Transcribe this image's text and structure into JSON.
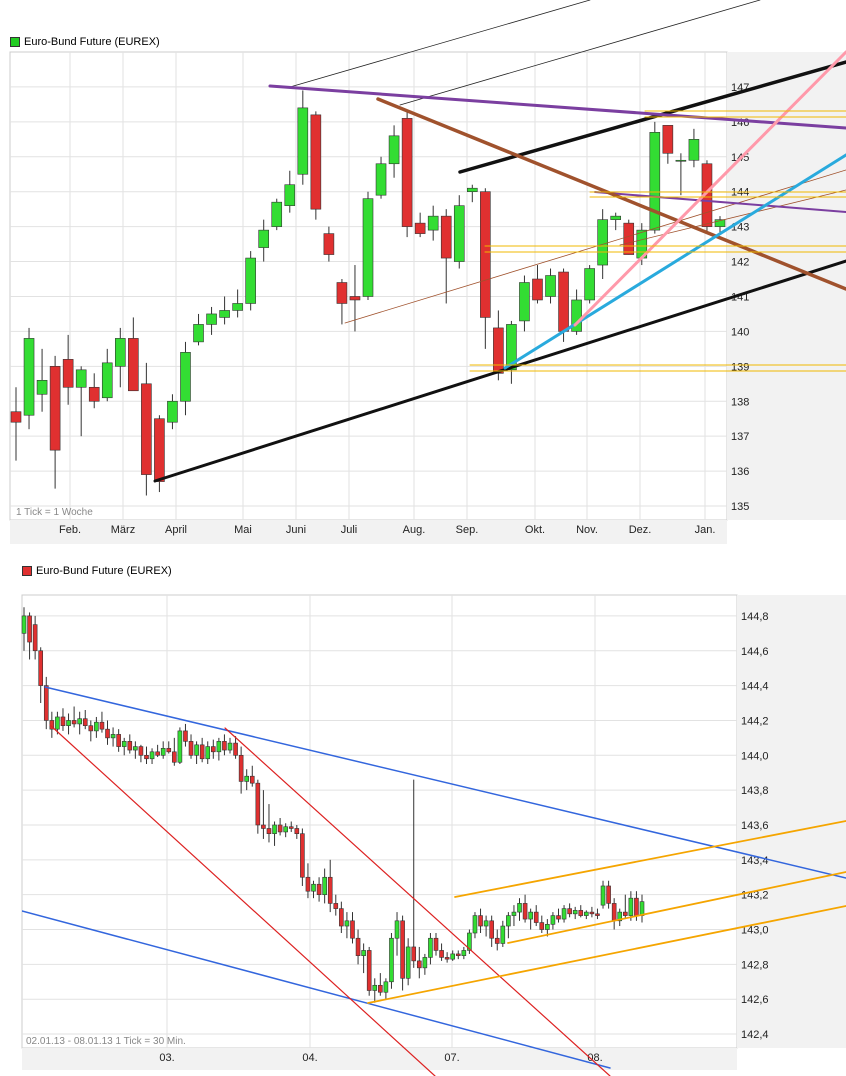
{
  "chart_data": [
    {
      "type": "candlestick",
      "title": "Euro-Bund Future (EUREX)",
      "legend_color": "#22cc22",
      "footnote": "1 Tick = 1 Woche",
      "x_tick_labels": [
        "Feb.",
        "März",
        "April",
        "Mai",
        "Juni",
        "Juli",
        "Aug.",
        "Sep.",
        "Okt.",
        "Nov.",
        "Dez.",
        "Jan."
      ],
      "y_tick_labels": [
        "135",
        "136",
        "137",
        "138",
        "139",
        "140",
        "141",
        "142",
        "143",
        "144",
        "145",
        "146",
        "147"
      ],
      "ylim": [
        134.6,
        148.0
      ],
      "up_color": "#33dd33",
      "down_color": "#e03030",
      "candles": [
        {
          "o": 137.7,
          "h": 138.4,
          "l": 136.3,
          "c": 137.4
        },
        {
          "o": 137.6,
          "h": 140.1,
          "l": 137.2,
          "c": 139.8
        },
        {
          "o": 138.2,
          "h": 139.5,
          "l": 137.7,
          "c": 138.6
        },
        {
          "o": 139.0,
          "h": 139.3,
          "l": 135.5,
          "c": 136.6
        },
        {
          "o": 139.2,
          "h": 139.9,
          "l": 137.9,
          "c": 138.4
        },
        {
          "o": 138.4,
          "h": 139.0,
          "l": 137.0,
          "c": 138.9
        },
        {
          "o": 138.4,
          "h": 138.8,
          "l": 137.8,
          "c": 138.0
        },
        {
          "o": 138.1,
          "h": 139.5,
          "l": 138.0,
          "c": 139.1
        },
        {
          "o": 139.0,
          "h": 140.1,
          "l": 138.4,
          "c": 139.8
        },
        {
          "o": 139.8,
          "h": 140.4,
          "l": 138.3,
          "c": 138.3
        },
        {
          "o": 138.5,
          "h": 139.1,
          "l": 135.3,
          "c": 135.9
        },
        {
          "o": 137.5,
          "h": 137.6,
          "l": 135.4,
          "c": 135.7
        },
        {
          "o": 137.4,
          "h": 138.2,
          "l": 137.2,
          "c": 138.0
        },
        {
          "o": 138.0,
          "h": 139.7,
          "l": 137.6,
          "c": 139.4
        },
        {
          "o": 139.7,
          "h": 140.5,
          "l": 139.6,
          "c": 140.2
        },
        {
          "o": 140.2,
          "h": 140.7,
          "l": 139.9,
          "c": 140.5
        },
        {
          "o": 140.4,
          "h": 141.0,
          "l": 140.2,
          "c": 140.6
        },
        {
          "o": 140.6,
          "h": 141.2,
          "l": 140.4,
          "c": 140.8
        },
        {
          "o": 140.8,
          "h": 142.3,
          "l": 140.6,
          "c": 142.1
        },
        {
          "o": 142.4,
          "h": 143.2,
          "l": 142.0,
          "c": 142.9
        },
        {
          "o": 143.0,
          "h": 143.8,
          "l": 142.9,
          "c": 143.7
        },
        {
          "o": 143.6,
          "h": 144.6,
          "l": 143.4,
          "c": 144.2
        },
        {
          "o": 144.5,
          "h": 146.9,
          "l": 144.2,
          "c": 146.4
        },
        {
          "o": 146.2,
          "h": 146.3,
          "l": 143.2,
          "c": 143.5
        },
        {
          "o": 142.8,
          "h": 143.0,
          "l": 142.0,
          "c": 142.2
        },
        {
          "o": 141.4,
          "h": 141.5,
          "l": 140.2,
          "c": 140.8
        },
        {
          "o": 141.0,
          "h": 141.9,
          "l": 140.0,
          "c": 140.9
        },
        {
          "o": 141.0,
          "h": 144.0,
          "l": 140.9,
          "c": 143.8
        },
        {
          "o": 143.9,
          "h": 145.0,
          "l": 143.8,
          "c": 144.8
        },
        {
          "o": 144.8,
          "h": 145.9,
          "l": 144.4,
          "c": 145.6
        },
        {
          "o": 146.1,
          "h": 146.3,
          "l": 142.7,
          "c": 143.0
        },
        {
          "o": 143.1,
          "h": 143.4,
          "l": 142.7,
          "c": 142.8
        },
        {
          "o": 142.9,
          "h": 143.6,
          "l": 142.6,
          "c": 143.3
        },
        {
          "o": 143.3,
          "h": 143.5,
          "l": 140.8,
          "c": 142.1
        },
        {
          "o": 142.0,
          "h": 143.9,
          "l": 141.8,
          "c": 143.6
        },
        {
          "o": 144.0,
          "h": 144.2,
          "l": 143.7,
          "c": 144.1
        },
        {
          "o": 144.0,
          "h": 144.1,
          "l": 139.5,
          "c": 140.4
        },
        {
          "o": 140.1,
          "h": 140.6,
          "l": 138.6,
          "c": 138.8
        },
        {
          "o": 138.9,
          "h": 140.3,
          "l": 138.5,
          "c": 140.2
        },
        {
          "o": 140.3,
          "h": 141.6,
          "l": 140.0,
          "c": 141.4
        },
        {
          "o": 141.5,
          "h": 141.9,
          "l": 140.8,
          "c": 140.9
        },
        {
          "o": 141.0,
          "h": 141.8,
          "l": 140.8,
          "c": 141.6
        },
        {
          "o": 141.7,
          "h": 141.8,
          "l": 139.7,
          "c": 140.0
        },
        {
          "o": 140.0,
          "h": 141.2,
          "l": 139.9,
          "c": 140.9
        },
        {
          "o": 140.9,
          "h": 141.9,
          "l": 140.8,
          "c": 141.8
        },
        {
          "o": 141.9,
          "h": 143.5,
          "l": 141.5,
          "c": 143.2
        },
        {
          "o": 143.2,
          "h": 143.4,
          "l": 142.9,
          "c": 143.3
        },
        {
          "o": 143.1,
          "h": 143.2,
          "l": 142.2,
          "c": 142.2
        },
        {
          "o": 142.1,
          "h": 143.1,
          "l": 141.9,
          "c": 142.9
        },
        {
          "o": 142.9,
          "h": 146.0,
          "l": 142.8,
          "c": 145.7
        },
        {
          "o": 145.9,
          "h": 145.9,
          "l": 144.8,
          "c": 145.1
        },
        {
          "o": 144.9,
          "h": 145.1,
          "l": 143.9,
          "c": 144.9
        },
        {
          "o": 144.9,
          "h": 145.8,
          "l": 144.7,
          "c": 145.5
        },
        {
          "o": 144.8,
          "h": 144.9,
          "l": 142.8,
          "c": 143.0
        },
        {
          "o": 143.0,
          "h": 143.3,
          "l": 142.8,
          "c": 143.2
        }
      ]
    },
    {
      "type": "candlestick",
      "title": "Euro-Bund Future (EUREX)",
      "legend_color": "#e03030",
      "footnote": "02.01.13 - 08.01.13   1 Tick = 30 Min.",
      "x_tick_labels": [
        "03.",
        "04.",
        "07.",
        "08."
      ],
      "y_tick_labels": [
        "142,4",
        "142,6",
        "142,8",
        "143,0",
        "143,2",
        "143,4",
        "143,6",
        "143,8",
        "144,0",
        "144,2",
        "144,4",
        "144,6",
        "144,8"
      ],
      "ylim": [
        142.32,
        144.92
      ],
      "up_color": "#33dd33",
      "down_color": "#e03030",
      "candles": [
        {
          "o": 144.7,
          "h": 144.85,
          "l": 144.6,
          "c": 144.8
        },
        {
          "o": 144.8,
          "h": 144.82,
          "l": 144.55,
          "c": 144.65
        },
        {
          "o": 144.75,
          "h": 144.8,
          "l": 144.55,
          "c": 144.6
        },
        {
          "o": 144.6,
          "h": 144.62,
          "l": 144.3,
          "c": 144.4
        },
        {
          "o": 144.4,
          "h": 144.45,
          "l": 144.15,
          "c": 144.2
        },
        {
          "o": 144.2,
          "h": 144.25,
          "l": 144.1,
          "c": 144.15
        },
        {
          "o": 144.15,
          "h": 144.25,
          "l": 144.12,
          "c": 144.22
        },
        {
          "o": 144.22,
          "h": 144.27,
          "l": 144.14,
          "c": 144.17
        },
        {
          "o": 144.17,
          "h": 144.24,
          "l": 144.12,
          "c": 144.2
        },
        {
          "o": 144.2,
          "h": 144.28,
          "l": 144.16,
          "c": 144.18
        },
        {
          "o": 144.18,
          "h": 144.25,
          "l": 144.12,
          "c": 144.21
        },
        {
          "o": 144.21,
          "h": 144.26,
          "l": 144.15,
          "c": 144.17
        },
        {
          "o": 144.17,
          "h": 144.2,
          "l": 144.08,
          "c": 144.14
        },
        {
          "o": 144.14,
          "h": 144.22,
          "l": 144.1,
          "c": 144.19
        },
        {
          "o": 144.19,
          "h": 144.25,
          "l": 144.13,
          "c": 144.15
        },
        {
          "o": 144.15,
          "h": 144.2,
          "l": 144.06,
          "c": 144.1
        },
        {
          "o": 144.1,
          "h": 144.16,
          "l": 144.05,
          "c": 144.12
        },
        {
          "o": 144.12,
          "h": 144.15,
          "l": 144.02,
          "c": 144.05
        },
        {
          "o": 144.05,
          "h": 144.1,
          "l": 144.0,
          "c": 144.08
        },
        {
          "o": 144.08,
          "h": 144.12,
          "l": 144.01,
          "c": 144.03
        },
        {
          "o": 144.03,
          "h": 144.08,
          "l": 143.98,
          "c": 144.05
        },
        {
          "o": 144.05,
          "h": 144.06,
          "l": 143.96,
          "c": 144.0
        },
        {
          "o": 144.0,
          "h": 144.05,
          "l": 143.95,
          "c": 143.98
        },
        {
          "o": 143.98,
          "h": 144.04,
          "l": 143.95,
          "c": 144.02
        },
        {
          "o": 144.02,
          "h": 144.06,
          "l": 143.99,
          "c": 144.0
        },
        {
          "o": 144.0,
          "h": 144.08,
          "l": 143.98,
          "c": 144.04
        },
        {
          "o": 144.04,
          "h": 144.08,
          "l": 144.01,
          "c": 144.02
        },
        {
          "o": 144.02,
          "h": 144.1,
          "l": 143.94,
          "c": 143.96
        },
        {
          "o": 143.96,
          "h": 144.16,
          "l": 143.95,
          "c": 144.14
        },
        {
          "o": 144.14,
          "h": 144.18,
          "l": 144.05,
          "c": 144.08
        },
        {
          "o": 144.08,
          "h": 144.12,
          "l": 143.98,
          "c": 144.0
        },
        {
          "o": 144.0,
          "h": 144.08,
          "l": 143.95,
          "c": 144.06
        },
        {
          "o": 144.06,
          "h": 144.1,
          "l": 143.96,
          "c": 143.98
        },
        {
          "o": 143.98,
          "h": 144.08,
          "l": 143.95,
          "c": 144.05
        },
        {
          "o": 144.05,
          "h": 144.09,
          "l": 143.98,
          "c": 144.02
        },
        {
          "o": 144.02,
          "h": 144.1,
          "l": 143.97,
          "c": 144.08
        },
        {
          "o": 144.08,
          "h": 144.12,
          "l": 144.0,
          "c": 144.03
        },
        {
          "o": 144.03,
          "h": 144.1,
          "l": 144.01,
          "c": 144.07
        },
        {
          "o": 144.07,
          "h": 144.11,
          "l": 143.98,
          "c": 144.0
        },
        {
          "o": 144.0,
          "h": 144.05,
          "l": 143.78,
          "c": 143.85
        },
        {
          "o": 143.85,
          "h": 143.92,
          "l": 143.8,
          "c": 143.88
        },
        {
          "o": 143.88,
          "h": 143.94,
          "l": 143.82,
          "c": 143.84
        },
        {
          "o": 143.84,
          "h": 143.86,
          "l": 143.55,
          "c": 143.6
        },
        {
          "o": 143.6,
          "h": 143.8,
          "l": 143.52,
          "c": 143.58
        },
        {
          "o": 143.58,
          "h": 143.72,
          "l": 143.5,
          "c": 143.55
        },
        {
          "o": 143.55,
          "h": 143.62,
          "l": 143.48,
          "c": 143.6
        },
        {
          "o": 143.6,
          "h": 143.64,
          "l": 143.54,
          "c": 143.56
        },
        {
          "o": 143.56,
          "h": 143.61,
          "l": 143.53,
          "c": 143.59
        },
        {
          "o": 143.59,
          "h": 143.62,
          "l": 143.56,
          "c": 143.58
        },
        {
          "o": 143.58,
          "h": 143.6,
          "l": 143.52,
          "c": 143.55
        },
        {
          "o": 143.55,
          "h": 143.58,
          "l": 143.25,
          "c": 143.3
        },
        {
          "o": 143.3,
          "h": 143.38,
          "l": 143.18,
          "c": 143.22
        },
        {
          "o": 143.22,
          "h": 143.28,
          "l": 143.18,
          "c": 143.26
        },
        {
          "o": 143.26,
          "h": 143.3,
          "l": 143.16,
          "c": 143.2
        },
        {
          "o": 143.2,
          "h": 143.35,
          "l": 143.15,
          "c": 143.3
        },
        {
          "o": 143.3,
          "h": 143.4,
          "l": 143.1,
          "c": 143.15
        },
        {
          "o": 143.15,
          "h": 143.2,
          "l": 143.08,
          "c": 143.12
        },
        {
          "o": 143.12,
          "h": 143.16,
          "l": 142.98,
          "c": 143.02
        },
        {
          "o": 143.02,
          "h": 143.1,
          "l": 142.95,
          "c": 143.05
        },
        {
          "o": 143.05,
          "h": 143.1,
          "l": 142.92,
          "c": 142.95
        },
        {
          "o": 142.95,
          "h": 143.0,
          "l": 142.8,
          "c": 142.85
        },
        {
          "o": 142.85,
          "h": 142.92,
          "l": 142.75,
          "c": 142.88
        },
        {
          "o": 142.88,
          "h": 142.9,
          "l": 142.62,
          "c": 142.65
        },
        {
          "o": 142.65,
          "h": 142.72,
          "l": 142.58,
          "c": 142.68
        },
        {
          "o": 142.68,
          "h": 142.75,
          "l": 142.62,
          "c": 142.64
        },
        {
          "o": 142.64,
          "h": 142.72,
          "l": 142.6,
          "c": 142.7
        },
        {
          "o": 142.7,
          "h": 142.98,
          "l": 142.66,
          "c": 142.95
        },
        {
          "o": 142.95,
          "h": 143.1,
          "l": 142.85,
          "c": 143.05
        },
        {
          "o": 143.05,
          "h": 143.08,
          "l": 142.65,
          "c": 142.72
        },
        {
          "o": 142.72,
          "h": 142.95,
          "l": 142.68,
          "c": 142.9
        },
        {
          "o": 142.9,
          "h": 143.86,
          "l": 142.78,
          "c": 142.82
        },
        {
          "o": 142.82,
          "h": 142.9,
          "l": 142.72,
          "c": 142.78
        },
        {
          "o": 142.78,
          "h": 142.86,
          "l": 142.74,
          "c": 142.84
        },
        {
          "o": 142.84,
          "h": 142.98,
          "l": 142.8,
          "c": 142.95
        },
        {
          "o": 142.95,
          "h": 142.98,
          "l": 142.85,
          "c": 142.88
        },
        {
          "o": 142.88,
          "h": 142.92,
          "l": 142.82,
          "c": 142.84
        },
        {
          "o": 142.84,
          "h": 142.87,
          "l": 142.81,
          "c": 142.83
        },
        {
          "o": 142.83,
          "h": 142.88,
          "l": 142.82,
          "c": 142.86
        },
        {
          "o": 142.86,
          "h": 142.88,
          "l": 142.83,
          "c": 142.85
        },
        {
          "o": 142.85,
          "h": 142.9,
          "l": 142.83,
          "c": 142.88
        },
        {
          "o": 142.88,
          "h": 143.0,
          "l": 142.86,
          "c": 142.98
        },
        {
          "o": 142.98,
          "h": 143.1,
          "l": 142.95,
          "c": 143.08
        },
        {
          "o": 143.08,
          "h": 143.12,
          "l": 142.98,
          "c": 143.02
        },
        {
          "o": 143.02,
          "h": 143.08,
          "l": 142.96,
          "c": 143.05
        },
        {
          "o": 143.05,
          "h": 143.08,
          "l": 142.9,
          "c": 142.95
        },
        {
          "o": 142.95,
          "h": 143.0,
          "l": 142.88,
          "c": 142.92
        },
        {
          "o": 142.92,
          "h": 143.05,
          "l": 142.9,
          "c": 143.02
        },
        {
          "o": 143.02,
          "h": 143.1,
          "l": 142.95,
          "c": 143.08
        },
        {
          "o": 143.08,
          "h": 143.14,
          "l": 143.02,
          "c": 143.1
        },
        {
          "o": 143.1,
          "h": 143.18,
          "l": 143.05,
          "c": 143.15
        },
        {
          "o": 143.15,
          "h": 143.2,
          "l": 143.04,
          "c": 143.06
        },
        {
          "o": 143.06,
          "h": 143.12,
          "l": 143.0,
          "c": 143.1
        },
        {
          "o": 143.1,
          "h": 143.14,
          "l": 143.02,
          "c": 143.04
        },
        {
          "o": 143.04,
          "h": 143.08,
          "l": 142.98,
          "c": 143.0
        },
        {
          "o": 143.0,
          "h": 143.06,
          "l": 142.96,
          "c": 143.03
        },
        {
          "o": 143.03,
          "h": 143.1,
          "l": 143.0,
          "c": 143.08
        },
        {
          "o": 143.08,
          "h": 143.12,
          "l": 143.04,
          "c": 143.06
        },
        {
          "o": 143.06,
          "h": 143.14,
          "l": 143.04,
          "c": 143.12
        },
        {
          "o": 143.12,
          "h": 143.15,
          "l": 143.07,
          "c": 143.09
        },
        {
          "o": 143.09,
          "h": 143.13,
          "l": 143.06,
          "c": 143.11
        },
        {
          "o": 143.11,
          "h": 143.14,
          "l": 143.07,
          "c": 143.08
        },
        {
          "o": 143.08,
          "h": 143.11,
          "l": 143.06,
          "c": 143.1
        },
        {
          "o": 143.1,
          "h": 143.13,
          "l": 143.07,
          "c": 143.09
        },
        {
          "o": 143.09,
          "h": 143.12,
          "l": 143.06,
          "c": 143.08
        },
        {
          "o": 143.14,
          "h": 143.28,
          "l": 143.12,
          "c": 143.25
        },
        {
          "o": 143.25,
          "h": 143.28,
          "l": 143.12,
          "c": 143.15
        },
        {
          "o": 143.15,
          "h": 143.18,
          "l": 143.0,
          "c": 143.05
        },
        {
          "o": 143.05,
          "h": 143.12,
          "l": 143.02,
          "c": 143.1
        },
        {
          "o": 143.1,
          "h": 143.2,
          "l": 143.06,
          "c": 143.08
        },
        {
          "o": 143.08,
          "h": 143.22,
          "l": 143.05,
          "c": 143.18
        },
        {
          "o": 143.18,
          "h": 143.22,
          "l": 143.05,
          "c": 143.08
        },
        {
          "o": 143.08,
          "h": 143.2,
          "l": 143.04,
          "c": 143.16
        }
      ]
    }
  ]
}
